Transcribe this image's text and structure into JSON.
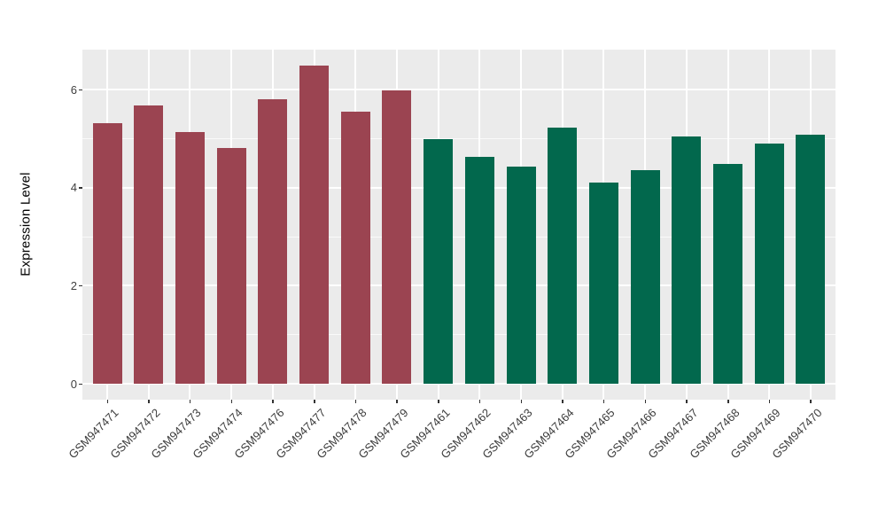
{
  "chart_data": {
    "type": "bar",
    "title": "",
    "xlabel": "",
    "ylabel": "Expression Level",
    "categories": [
      "GSM947471",
      "GSM947472",
      "GSM947473",
      "GSM947474",
      "GSM947476",
      "GSM947477",
      "GSM947478",
      "GSM947479",
      "GSM947461",
      "GSM947462",
      "GSM947463",
      "GSM947464",
      "GSM947465",
      "GSM947466",
      "GSM947467",
      "GSM947468",
      "GSM947469",
      "GSM947470"
    ],
    "values": [
      5.31,
      5.67,
      5.14,
      4.81,
      5.81,
      6.48,
      5.55,
      5.98,
      4.98,
      4.63,
      4.42,
      5.23,
      4.1,
      4.36,
      5.04,
      4.48,
      4.89,
      5.07
    ],
    "groups": [
      {
        "color": "#9B4451",
        "count": 8
      },
      {
        "color": "#02684D",
        "count": 10
      }
    ],
    "y_ticks": [
      0,
      2,
      4,
      6
    ],
    "y_minor_ticks": [
      1,
      3,
      5
    ],
    "ylim": [
      -0.32,
      6.81
    ],
    "bar_width_fraction": 0.7,
    "grid": "major white h+v, minor white h, on grey panel",
    "legend_position": "none"
  },
  "style": {
    "figure_background": "#FFFFFF",
    "panel_background": "#EBEBEB",
    "grid_color": "#FFFFFF",
    "tick_mark_color": "#333333",
    "tick_label_color": "#404040",
    "axis_title_color": "#000000"
  }
}
